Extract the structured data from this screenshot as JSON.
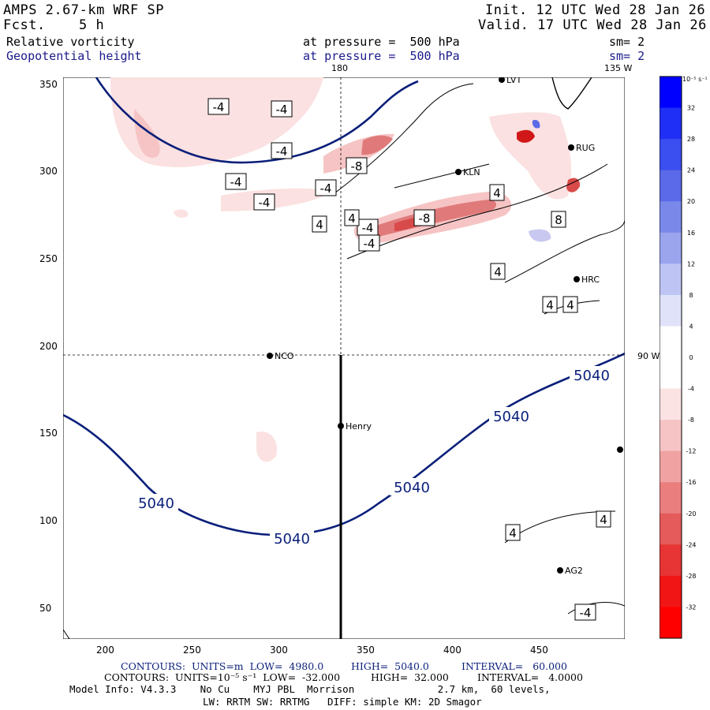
{
  "header": {
    "model_title": "AMPS 2.67-km WRF SP",
    "forecast_label": "Fcst.",
    "forecast_hours": "5 h",
    "init": "Init. 12 UTC Wed 28 Jan 26",
    "valid": "Valid. 17 UTC Wed 28 Jan 26",
    "field1_name": "Relative vorticity",
    "field1_level": "at pressure =  500 hPa",
    "field1_smooth": "sm= 2",
    "field2_name": "Geopotential height",
    "field2_level": "at pressure =  500 hPa",
    "field2_smooth": "sm= 2"
  },
  "map": {
    "meridian_180_label": "180",
    "meridian_135w_label": "135 W",
    "meridian_90w_label": "90 W",
    "x_ticks": [
      "200",
      "250",
      "300",
      "350",
      "400",
      "450"
    ],
    "y_ticks": [
      "350",
      "300",
      "250",
      "200",
      "150",
      "100",
      "50"
    ],
    "stations": [
      "LVT",
      "RUG",
      "KLN",
      "HRC",
      "NCO",
      "Henry",
      "AG2"
    ],
    "height_contour_labels": [
      "5040",
      "5040",
      "5040",
      "5040",
      "5040"
    ],
    "vorticity_labels": [
      "-4",
      "-4",
      "-4",
      "-4",
      "-4",
      "-4",
      "-8",
      "-4",
      "4",
      "4",
      "-8",
      "-4",
      "8",
      "4",
      "4",
      "4",
      "4",
      "4",
      "4",
      "-4"
    ],
    "colors": {
      "height_contour": "#0a1f7a",
      "positive_fill": "#f5c6c6",
      "strong_fill": "#e07a7a",
      "negative_fill": "#c8c8f0"
    }
  },
  "legend": {
    "unit_label": "10⁻⁵ s⁻¹",
    "ticks": [
      "32",
      "28",
      "24",
      "20",
      "16",
      "12",
      "8",
      "4",
      "0",
      "-4",
      "-8",
      "-12",
      "-16",
      "-20",
      "-24",
      "-28",
      "-32"
    ],
    "colors": [
      "#0000ff",
      "#1f2ff5",
      "#3b4ef0",
      "#5a6ae8",
      "#7a88ea",
      "#9aa5ee",
      "#bec4f3",
      "#e0e2fa",
      "#ffffff",
      "#ffffff",
      "#fbe3e3",
      "#f6c4c4",
      "#f0a2a2",
      "#ea7e7e",
      "#e55a5a",
      "#e73434",
      "#f21515",
      "#ff0000"
    ]
  },
  "footer": {
    "line1_a": "CONTOURS:  UNITS=m  LOW=  4980.0",
    "line1_b": "HIGH=  5040.0",
    "line1_c": "INTERVAL=   60.000",
    "line2_a": "CONTOURS:  UNITS=10⁻⁵ s⁻¹  LOW=  -32.000",
    "line2_b": "HIGH=  32.000",
    "line2_c": "INTERVAL=   4.0000",
    "line3": "Model Info: V4.3.3    No Cu    MYJ PBL  Morrison              2.7 km,  60 levels,",
    "line4": "LW: RRTM SW: RRTMG   DIFF: simple KM: 2D Smagor"
  }
}
